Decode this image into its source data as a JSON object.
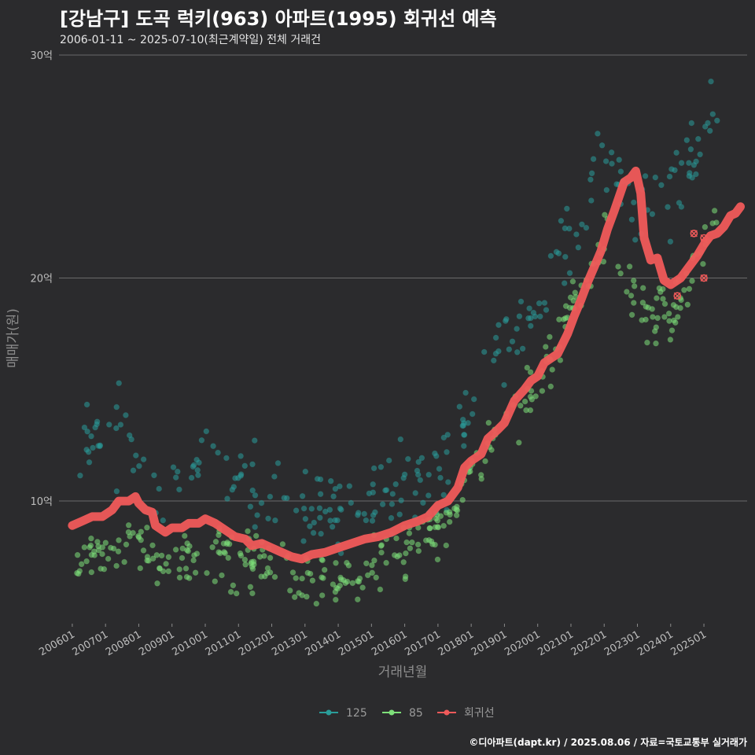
{
  "header": {
    "title": "[강남구] 도곡 럭키(963) 아파트(1995) 회귀선 예측",
    "subtitle": "2006-01-11 ~ 2025-07-10(최근계약일) 전체 거래건"
  },
  "footer": {
    "credit": "©디아파트(dapt.kr) / 2025.08.06 / 자료=국토교통부 실거래가"
  },
  "colors": {
    "background": "#2b2b2d",
    "grid": "#6a6a6a",
    "s125": "#2a9d9a",
    "s85": "#7ee07a",
    "regression": "#f05a5a"
  },
  "chart_data": {
    "type": "scatter",
    "xlabel": "거래년월",
    "ylabel": "매매가(원)",
    "ylim": [
      4.5,
      30
    ],
    "y_ticks": [
      {
        "value": 10,
        "label": "10억"
      },
      {
        "value": 20,
        "label": "20억"
      },
      {
        "value": 30,
        "label": "30억"
      }
    ],
    "x_ticks": [
      "200601",
      "200701",
      "200801",
      "200901",
      "201001",
      "201101",
      "201201",
      "201301",
      "201401",
      "201501",
      "201601",
      "201701",
      "201801",
      "201901",
      "202001",
      "202101",
      "202201",
      "202301",
      "202401",
      "202501"
    ],
    "x_range": [
      2005.6,
      2026.3
    ],
    "legend": {
      "position": "bottom",
      "entries": [
        "125",
        "85",
        "회귀선"
      ]
    },
    "series": [
      {
        "name": "125",
        "anchors": [
          [
            2006.0,
            11.0
          ],
          [
            2006.6,
            12.8
          ],
          [
            2007.0,
            13.6
          ],
          [
            2007.5,
            12.5
          ],
          [
            2008.0,
            12.0
          ],
          [
            2008.5,
            11.0
          ],
          [
            2009.0,
            10.5
          ],
          [
            2009.5,
            11.5
          ],
          [
            2010.0,
            12.0
          ],
          [
            2010.5,
            11.8
          ],
          [
            2011.0,
            11.0
          ],
          [
            2011.5,
            10.8
          ],
          [
            2012.0,
            10.5
          ],
          [
            2012.5,
            10.2
          ],
          [
            2013.0,
            9.6
          ],
          [
            2013.5,
            9.4
          ],
          [
            2014.0,
            9.6
          ],
          [
            2014.5,
            10.0
          ],
          [
            2015.0,
            10.2
          ],
          [
            2015.5,
            10.5
          ],
          [
            2016.0,
            10.5
          ],
          [
            2016.5,
            10.8
          ],
          [
            2017.0,
            11.3
          ],
          [
            2017.5,
            12.2
          ],
          [
            2018.0,
            13.5
          ],
          [
            2018.5,
            15.5
          ],
          [
            2019.0,
            16.8
          ],
          [
            2019.5,
            17.2
          ],
          [
            2020.0,
            18.5
          ],
          [
            2020.5,
            20.5
          ],
          [
            2021.0,
            22.0
          ],
          [
            2021.5,
            23.5
          ],
          [
            2022.0,
            26.5
          ],
          [
            2022.5,
            24.5
          ],
          [
            2023.0,
            22.5
          ],
          [
            2023.5,
            23.5
          ],
          [
            2024.0,
            23.5
          ],
          [
            2024.5,
            25.0
          ],
          [
            2025.0,
            26.5
          ],
          [
            2025.4,
            28.0
          ]
        ],
        "count": 260,
        "spread": 0.9,
        "seed": 11
      },
      {
        "name": "85",
        "anchors": [
          [
            2006.0,
            6.5
          ],
          [
            2006.6,
            7.8
          ],
          [
            2007.0,
            7.8
          ],
          [
            2007.5,
            8.0
          ],
          [
            2008.0,
            8.0
          ],
          [
            2008.5,
            7.5
          ],
          [
            2009.0,
            7.2
          ],
          [
            2009.5,
            7.4
          ],
          [
            2010.0,
            7.6
          ],
          [
            2010.5,
            7.5
          ],
          [
            2011.0,
            7.3
          ],
          [
            2011.5,
            7.2
          ],
          [
            2012.0,
            7.0
          ],
          [
            2012.5,
            6.8
          ],
          [
            2013.0,
            6.7
          ],
          [
            2013.5,
            6.6
          ],
          [
            2014.0,
            6.7
          ],
          [
            2014.5,
            6.8
          ],
          [
            2015.0,
            7.0
          ],
          [
            2015.5,
            7.5
          ],
          [
            2016.0,
            8.0
          ],
          [
            2016.5,
            8.3
          ],
          [
            2017.0,
            8.5
          ],
          [
            2017.5,
            9.2
          ],
          [
            2018.0,
            11.5
          ],
          [
            2018.5,
            12.5
          ],
          [
            2019.0,
            13.5
          ],
          [
            2019.5,
            14.5
          ],
          [
            2020.0,
            15.5
          ],
          [
            2020.5,
            17.0
          ],
          [
            2021.0,
            18.5
          ],
          [
            2021.5,
            20.0
          ],
          [
            2022.0,
            22.0
          ],
          [
            2022.5,
            21.0
          ],
          [
            2023.0,
            18.5
          ],
          [
            2023.5,
            18.5
          ],
          [
            2024.0,
            18.5
          ],
          [
            2024.5,
            19.5
          ],
          [
            2025.0,
            21.5
          ],
          [
            2025.4,
            23.0
          ]
        ],
        "count": 360,
        "spread": 0.6,
        "seed": 29
      },
      {
        "name": "회귀선",
        "points": [
          [
            2006.0,
            8.9
          ],
          [
            2006.3,
            9.1
          ],
          [
            2006.6,
            9.3
          ],
          [
            2006.9,
            9.3
          ],
          [
            2007.2,
            9.6
          ],
          [
            2007.4,
            10.0
          ],
          [
            2007.7,
            10.0
          ],
          [
            2007.9,
            10.2
          ],
          [
            2008.0,
            9.9
          ],
          [
            2008.2,
            9.6
          ],
          [
            2008.4,
            9.5
          ],
          [
            2008.5,
            8.9
          ],
          [
            2008.8,
            8.6
          ],
          [
            2009.0,
            8.8
          ],
          [
            2009.3,
            8.8
          ],
          [
            2009.5,
            9.0
          ],
          [
            2009.8,
            9.0
          ],
          [
            2010.0,
            9.2
          ],
          [
            2010.3,
            9.0
          ],
          [
            2010.6,
            8.7
          ],
          [
            2010.9,
            8.4
          ],
          [
            2011.2,
            8.3
          ],
          [
            2011.4,
            8.0
          ],
          [
            2011.7,
            8.1
          ],
          [
            2012.0,
            7.9
          ],
          [
            2012.3,
            7.7
          ],
          [
            2012.6,
            7.5
          ],
          [
            2012.9,
            7.4
          ],
          [
            2013.2,
            7.6
          ],
          [
            2013.6,
            7.7
          ],
          [
            2014.0,
            7.9
          ],
          [
            2014.4,
            8.1
          ],
          [
            2014.8,
            8.3
          ],
          [
            2015.2,
            8.4
          ],
          [
            2015.6,
            8.6
          ],
          [
            2016.0,
            8.9
          ],
          [
            2016.4,
            9.1
          ],
          [
            2016.7,
            9.3
          ],
          [
            2017.0,
            9.8
          ],
          [
            2017.3,
            10.0
          ],
          [
            2017.6,
            10.6
          ],
          [
            2017.8,
            11.5
          ],
          [
            2018.0,
            11.8
          ],
          [
            2018.3,
            12.1
          ],
          [
            2018.5,
            12.8
          ],
          [
            2018.8,
            13.2
          ],
          [
            2019.0,
            13.5
          ],
          [
            2019.3,
            14.5
          ],
          [
            2019.6,
            15.0
          ],
          [
            2019.8,
            15.4
          ],
          [
            2020.0,
            15.6
          ],
          [
            2020.2,
            16.2
          ],
          [
            2020.4,
            16.4
          ],
          [
            2020.6,
            16.6
          ],
          [
            2020.9,
            17.5
          ],
          [
            2021.1,
            18.3
          ],
          [
            2021.3,
            19.0
          ],
          [
            2021.5,
            19.8
          ],
          [
            2021.7,
            20.5
          ],
          [
            2021.9,
            21.2
          ],
          [
            2022.1,
            22.2
          ],
          [
            2022.3,
            23.0
          ],
          [
            2022.6,
            24.3
          ],
          [
            2022.8,
            24.5
          ],
          [
            2022.95,
            24.8
          ],
          [
            2023.1,
            23.8
          ],
          [
            2023.2,
            21.8
          ],
          [
            2023.4,
            20.8
          ],
          [
            2023.6,
            20.9
          ],
          [
            2023.8,
            19.9
          ],
          [
            2024.0,
            19.7
          ],
          [
            2024.3,
            20.0
          ],
          [
            2024.5,
            20.4
          ],
          [
            2024.8,
            21.0
          ],
          [
            2025.0,
            21.5
          ],
          [
            2025.2,
            21.9
          ],
          [
            2025.4,
            22.0
          ],
          [
            2025.6,
            22.3
          ],
          [
            2025.8,
            22.8
          ],
          [
            2025.95,
            22.9
          ],
          [
            2026.1,
            23.2
          ]
        ]
      }
    ],
    "highlighted_points": [
      [
        2024.2,
        19.2
      ],
      [
        2024.7,
        22.0
      ],
      [
        2025.0,
        21.8
      ],
      [
        2025.0,
        20.0
      ]
    ]
  }
}
